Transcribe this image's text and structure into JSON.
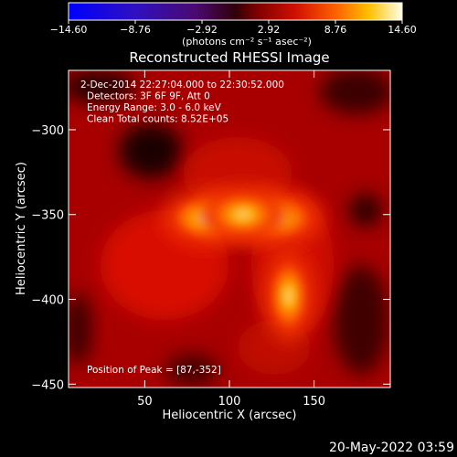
{
  "chart_data": {
    "type": "heatmap",
    "title": "Reconstructed RHESSI Image",
    "xlabel": "Heliocentric X (arcsec)",
    "ylabel": "Heliocentric Y (arcsec)",
    "xlim": [
      5,
      195
    ],
    "ylim": [
      -452,
      -265
    ],
    "xticks": [
      50,
      100,
      150
    ],
    "yticks": [
      -300,
      -350,
      -400,
      -450
    ],
    "colorbar": {
      "range": [
        -14.6,
        14.6
      ],
      "ticks": [
        "-14.60",
        "-8.76",
        "-2.92",
        "2.92",
        "8.76",
        "14.60"
      ],
      "unit_label": "(photons cm⁻² s⁻¹ asec⁻²)",
      "colormap": "black-blue-purple-red-orange-yellow-white"
    },
    "info_lines": [
      "2-Dec-2014 22:27:04.000 to 22:30:52.000",
      "Detectors: 3F 6F 9F, Att 0",
      "Energy Range: 3.0 - 6.0 keV",
      "Clean    Total counts: 8.52E+05"
    ],
    "peak_label": "Position of Peak = [87,-352]",
    "peak": [
      87,
      -352
    ],
    "sources": [
      {
        "x": 87,
        "y": -352,
        "peak": 14.6
      },
      {
        "x": 128,
        "y": -352,
        "peak": 11.5
      },
      {
        "x": 135,
        "y": -398,
        "peak": 10.0
      },
      {
        "x": 108,
        "y": -350,
        "peak": 9.5
      }
    ],
    "timestamp": "20-May-2022 03:59"
  },
  "colors": {
    "background": "#000000",
    "foreground": "#ffffff",
    "image_base": "#a80000"
  }
}
